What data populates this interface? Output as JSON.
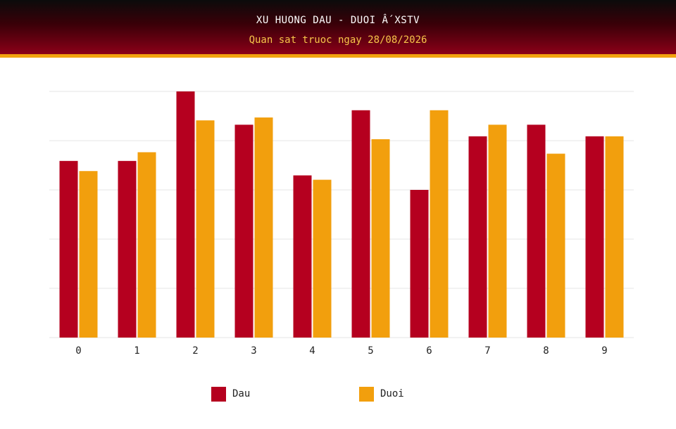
{
  "header": {
    "title": "XU HUONG DAU - DUOI Ấ XSTV",
    "subtitle": "Quan sat truoc ngay 28/08/2026"
  },
  "colors": {
    "dau": "#b5001f",
    "duoi": "#f29f0d",
    "grid": "#e6e6e6",
    "tick_text": "#222222"
  },
  "chart_data": {
    "type": "bar",
    "categories": [
      "0",
      "1",
      "2",
      "3",
      "4",
      "5",
      "6",
      "7",
      "8",
      "9"
    ],
    "series": [
      {
        "name": "Dau",
        "values": [
          12.2,
          12.2,
          17.0,
          14.7,
          11.2,
          15.7,
          10.2,
          13.9,
          14.7,
          13.9
        ]
      },
      {
        "name": "Duoi",
        "values": [
          11.5,
          12.8,
          15.0,
          15.2,
          10.9,
          13.7,
          15.7,
          14.7,
          12.7,
          13.9
        ]
      }
    ],
    "ylim": [
      0,
      17
    ],
    "grid": true,
    "legend_position": "bottom"
  }
}
